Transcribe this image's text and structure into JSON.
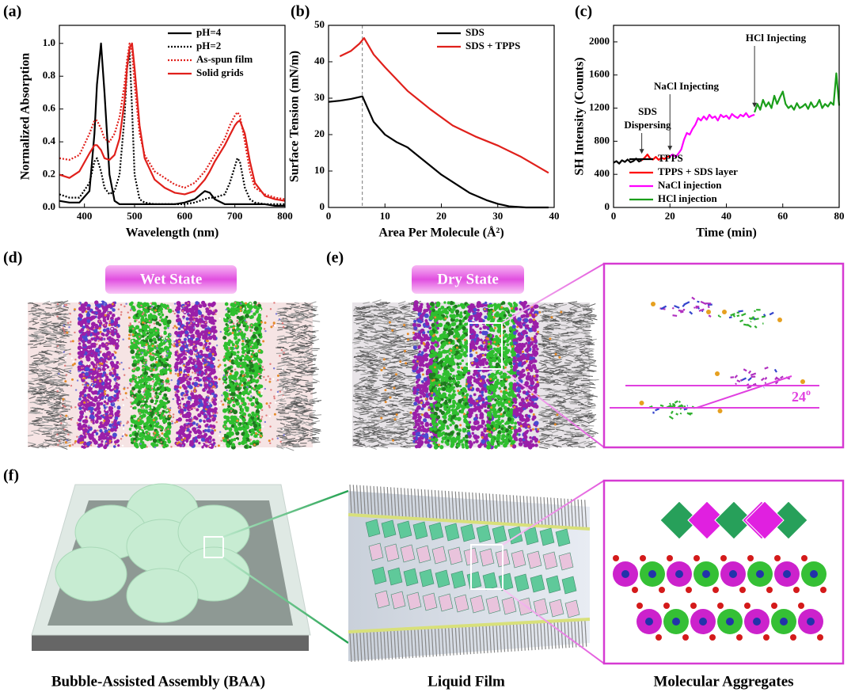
{
  "panel_labels": [
    "(a)",
    "(b)",
    "(c)",
    "(d)",
    "(e)",
    "(f)"
  ],
  "chart_data": [
    {
      "type": "line",
      "xlabel": "Wavelength (nm)",
      "ylabel": "Normalized Absorption",
      "xlim": [
        350,
        800
      ],
      "xticks": [
        400,
        500,
        600,
        700,
        800
      ],
      "ylim": [
        0,
        1.11
      ],
      "yticks": [
        {
          "value": 0,
          "label": "0.0"
        },
        {
          "value": 0.2,
          "label": "0.2"
        },
        {
          "value": 0.4,
          "label": "0.4"
        },
        {
          "value": 0.6,
          "label": "0.6"
        },
        {
          "value": 0.8,
          "label": "0.8"
        },
        {
          "value": 1.0,
          "label": "1.0"
        }
      ],
      "legend": "upper right",
      "x": [
        350,
        370,
        390,
        410,
        420,
        425,
        433,
        440,
        450,
        460,
        470,
        480,
        485,
        490,
        495,
        500,
        510,
        520,
        540,
        560,
        580,
        600,
        620,
        640,
        650,
        660,
        680,
        690,
        700,
        705,
        710,
        720,
        730,
        740,
        760,
        780,
        800
      ],
      "series": [
        {
          "name": "pH=4",
          "color": "#000000",
          "style": "solid",
          "values": [
            0.04,
            0.03,
            0.03,
            0.1,
            0.45,
            0.75,
            1.0,
            0.7,
            0.2,
            0.04,
            0.02,
            0.02,
            0.02,
            0.02,
            0.02,
            0.02,
            0.02,
            0.02,
            0.02,
            0.02,
            0.02,
            0.03,
            0.05,
            0.1,
            0.09,
            0.05,
            0.02,
            0.02,
            0.02,
            0.02,
            0.02,
            0.02,
            0.02,
            0.02,
            0.02,
            0.01,
            0.01
          ]
        },
        {
          "name": "pH=2",
          "color": "#000000",
          "style": "dotted",
          "values": [
            0.08,
            0.06,
            0.06,
            0.15,
            0.28,
            0.3,
            0.22,
            0.12,
            0.08,
            0.1,
            0.2,
            0.55,
            0.85,
            0.95,
            0.6,
            0.2,
            0.05,
            0.03,
            0.02,
            0.02,
            0.02,
            0.02,
            0.03,
            0.05,
            0.06,
            0.06,
            0.08,
            0.15,
            0.25,
            0.3,
            0.28,
            0.12,
            0.05,
            0.03,
            0.02,
            0.02,
            0.02
          ]
        },
        {
          "name": "As-spun film",
          "color": "#e0201b",
          "style": "dotted",
          "values": [
            0.3,
            0.29,
            0.32,
            0.45,
            0.53,
            0.53,
            0.48,
            0.42,
            0.4,
            0.45,
            0.55,
            0.75,
            0.9,
            1.0,
            0.95,
            0.75,
            0.45,
            0.32,
            0.22,
            0.18,
            0.14,
            0.12,
            0.15,
            0.22,
            0.27,
            0.32,
            0.42,
            0.5,
            0.56,
            0.58,
            0.56,
            0.4,
            0.22,
            0.12,
            0.08,
            0.06,
            0.05
          ]
        },
        {
          "name": "Solid grids",
          "color": "#e0201b",
          "style": "solid",
          "values": [
            0.2,
            0.18,
            0.22,
            0.33,
            0.38,
            0.38,
            0.35,
            0.3,
            0.29,
            0.32,
            0.42,
            0.65,
            0.85,
            0.97,
            1.0,
            0.85,
            0.5,
            0.3,
            0.17,
            0.12,
            0.09,
            0.08,
            0.1,
            0.17,
            0.22,
            0.28,
            0.38,
            0.44,
            0.5,
            0.52,
            0.53,
            0.45,
            0.28,
            0.15,
            0.07,
            0.05,
            0.04
          ]
        }
      ]
    },
    {
      "type": "line",
      "xlabel": "Area Per Molecule (Å²)",
      "ylabel": "Surface Tension (mN/m)",
      "xlim": [
        0,
        40
      ],
      "xticks": [
        0,
        10,
        20,
        30,
        40
      ],
      "ylim": [
        0,
        50
      ],
      "yticks": [
        0,
        10,
        20,
        30,
        40,
        50
      ],
      "legend": "upper right",
      "vline": 6,
      "series": [
        {
          "name": "SDS",
          "color": "#000000",
          "style": "solid",
          "x": [
            0,
            2,
            4,
            6,
            7,
            8,
            10,
            12,
            14,
            16,
            18,
            20,
            22,
            25,
            28,
            30,
            32,
            35,
            39
          ],
          "values": [
            29,
            29.3,
            29.8,
            30.5,
            27,
            23.5,
            20,
            18,
            16.5,
            14,
            11.5,
            9,
            7,
            4,
            2,
            1,
            0.3,
            0,
            0
          ]
        },
        {
          "name": "SDS + TPPS",
          "color": "#e0201b",
          "style": "solid",
          "x": [
            2,
            4,
            5.5,
            6.3,
            8,
            10,
            14,
            18,
            22,
            26,
            30,
            34,
            39
          ],
          "values": [
            41.5,
            43,
            45,
            46.5,
            42,
            38.5,
            32,
            27,
            22.5,
            19.5,
            17,
            14,
            9.5
          ]
        }
      ]
    },
    {
      "type": "line",
      "xlabel": "Time (min)",
      "ylabel": "SH Intensity (Counts)",
      "xlim": [
        0,
        80
      ],
      "xticks": [
        0,
        20,
        40,
        60,
        80
      ],
      "ylim": [
        0,
        2200
      ],
      "yticks": [
        0,
        400,
        800,
        1200,
        1600,
        2000
      ],
      "legend": "lower right",
      "annotations": [
        [
          "SDS",
          "Dispersing"
        ],
        [
          "NaCl Injecting"
        ],
        [
          "HCl Injecting"
        ]
      ],
      "series": [
        {
          "name": "TPPS",
          "color": "#000000",
          "style": "solid",
          "x": [
            0,
            1,
            2,
            3,
            4,
            5,
            6,
            7,
            8,
            9,
            10
          ],
          "values": [
            540,
            560,
            530,
            570,
            550,
            580,
            545,
            560,
            590,
            555,
            570
          ]
        },
        {
          "name": "TPPS + SDS layer",
          "color": "#ff0000",
          "style": "solid",
          "x": [
            10,
            11,
            12,
            13,
            14,
            15,
            16,
            17,
            18,
            19,
            20
          ],
          "values": [
            570,
            600,
            640,
            590,
            580,
            610,
            575,
            600,
            585,
            610,
            620
          ]
        },
        {
          "name": "NaCl injection",
          "color": "#ff00ff",
          "style": "solid",
          "x": [
            20,
            21,
            22,
            23,
            24,
            25,
            26,
            27,
            28,
            29,
            30,
            31,
            32,
            33,
            34,
            35,
            36,
            37,
            38,
            39,
            40,
            41,
            42,
            43,
            44,
            45,
            46,
            47,
            48,
            49,
            50
          ],
          "values": [
            620,
            640,
            610,
            650,
            700,
            820,
            900,
            880,
            950,
            1000,
            1080,
            1050,
            1100,
            1060,
            1120,
            1080,
            1100,
            1050,
            1120,
            1090,
            1110,
            1070,
            1130,
            1100,
            1080,
            1120,
            1100,
            1140,
            1090,
            1110,
            1120
          ]
        },
        {
          "name": "HCl injection",
          "color": "#1a9e1a",
          "style": "solid",
          "x": [
            50,
            51,
            52,
            53,
            54,
            55,
            56,
            57,
            58,
            59,
            60,
            61,
            62,
            63,
            64,
            65,
            66,
            67,
            68,
            69,
            70,
            71,
            72,
            73,
            74,
            75,
            76,
            77,
            78,
            79,
            80
          ],
          "values": [
            1150,
            1250,
            1180,
            1300,
            1220,
            1270,
            1200,
            1350,
            1250,
            1330,
            1400,
            1250,
            1200,
            1230,
            1180,
            1260,
            1200,
            1220,
            1250,
            1190,
            1270,
            1210,
            1230,
            1300,
            1200,
            1250,
            1220,
            1270,
            1240,
            1620,
            1230
          ]
        }
      ]
    }
  ],
  "illustrations": {
    "wet_state": "Wet State",
    "dry_state": "Dry State",
    "angle_value": "24",
    "angle_sup": "o",
    "captions": [
      "Bubble-Assisted Assembly (BAA)",
      "Liquid Film",
      "Molecular Aggregates"
    ]
  }
}
